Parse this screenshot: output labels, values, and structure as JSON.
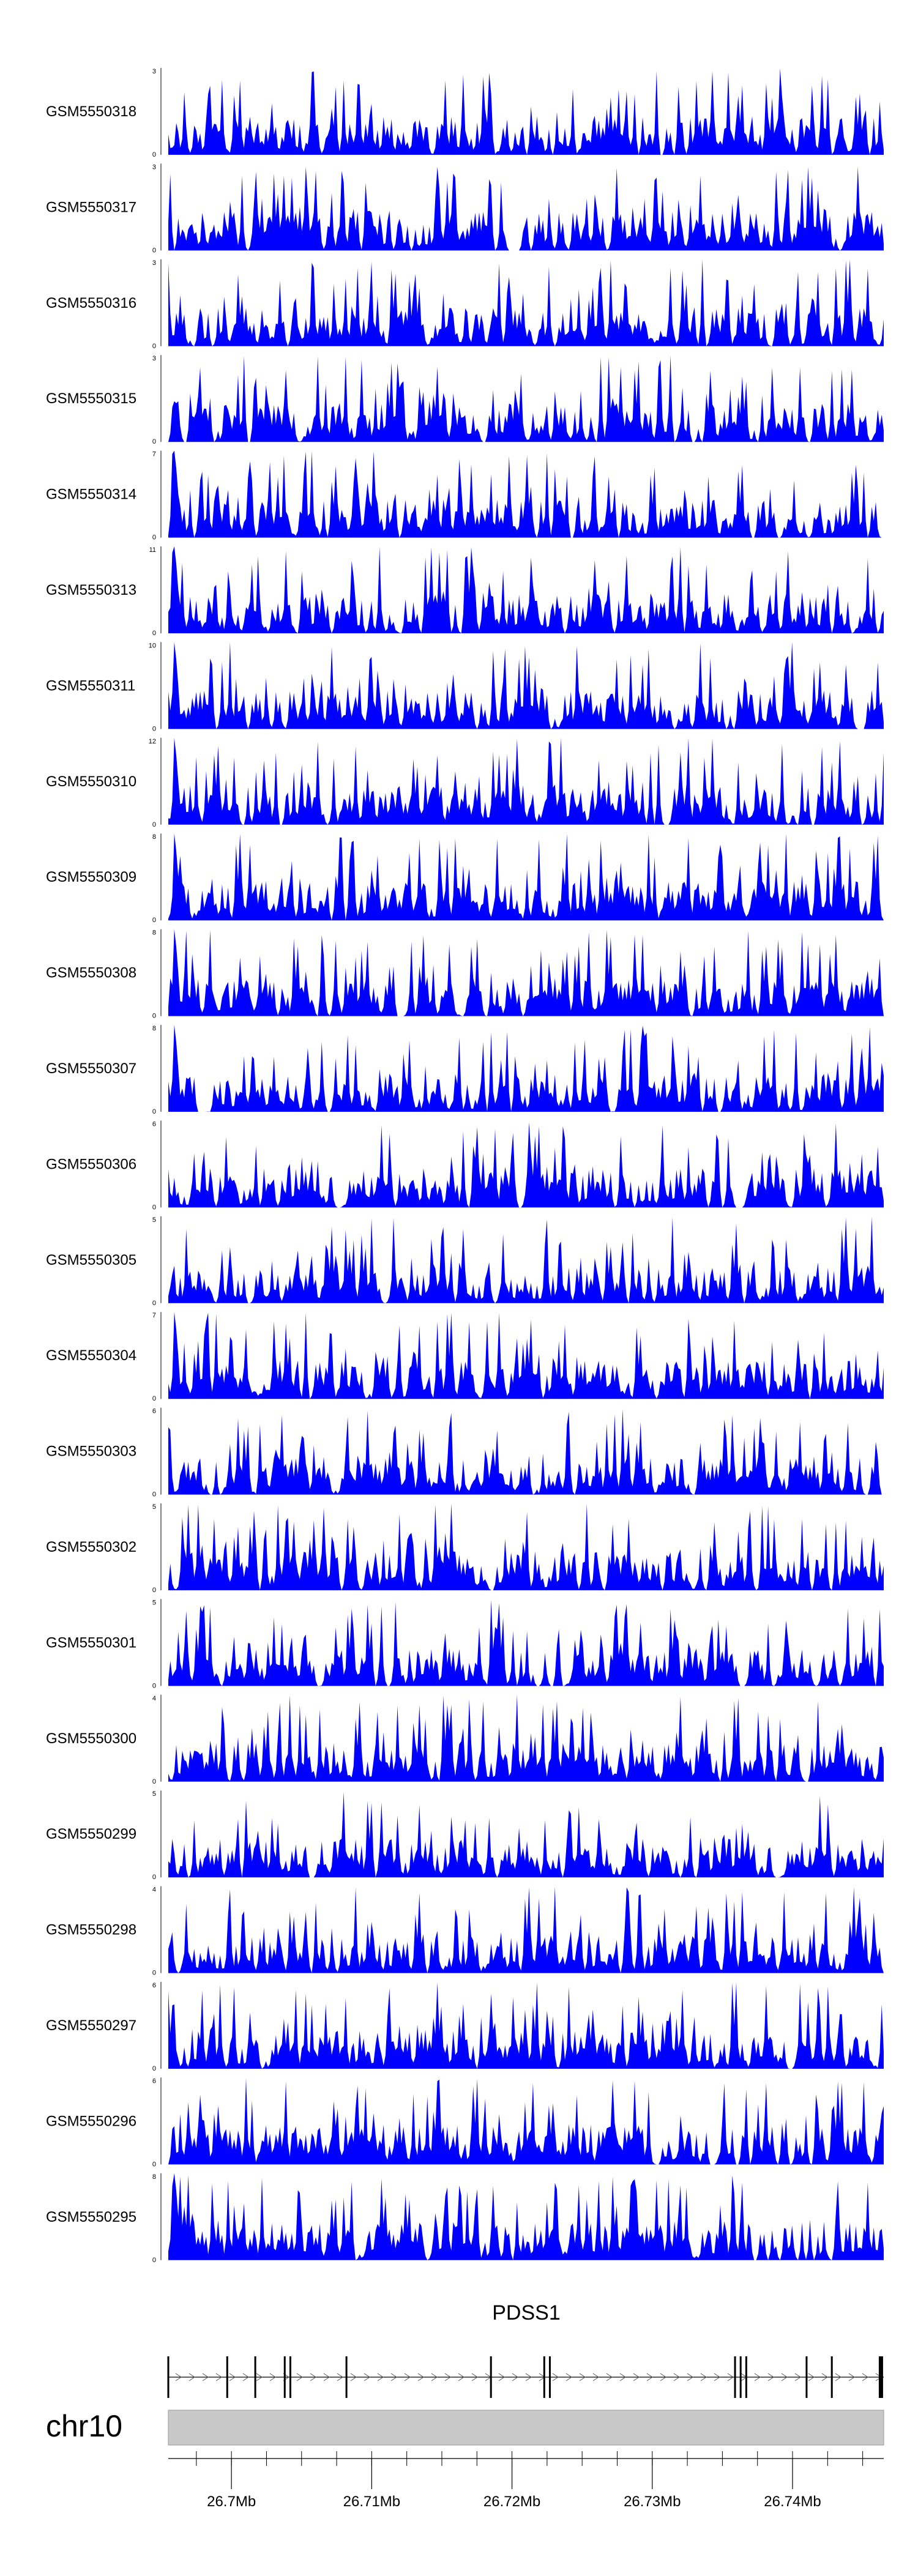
{
  "chart_data": {
    "type": "area",
    "description_type": "genome-track-coverage",
    "fill_color": "#0000FF",
    "tracks": [
      {
        "name": "GSM5550318",
        "ymin": 0,
        "ymax": 3,
        "seed": 318
      },
      {
        "name": "GSM5550317",
        "ymin": 0,
        "ymax": 3,
        "seed": 317
      },
      {
        "name": "GSM5550316",
        "ymin": 0,
        "ymax": 3,
        "seed": 316
      },
      {
        "name": "GSM5550315",
        "ymin": 0,
        "ymax": 3,
        "seed": 315
      },
      {
        "name": "GSM5550314",
        "ymin": 0,
        "ymax": 7,
        "seed": 314
      },
      {
        "name": "GSM5550313",
        "ymin": 0,
        "ymax": 11,
        "seed": 313
      },
      {
        "name": "GSM5550311",
        "ymin": 0,
        "ymax": 10,
        "seed": 311
      },
      {
        "name": "GSM5550310",
        "ymin": 0,
        "ymax": 12,
        "seed": 310
      },
      {
        "name": "GSM5550309",
        "ymin": 0,
        "ymax": 8,
        "seed": 309
      },
      {
        "name": "GSM5550308",
        "ymin": 0,
        "ymax": 8,
        "seed": 308
      },
      {
        "name": "GSM5550307",
        "ymin": 0,
        "ymax": 8,
        "seed": 307
      },
      {
        "name": "GSM5550306",
        "ymin": 0,
        "ymax": 6,
        "seed": 306
      },
      {
        "name": "GSM5550305",
        "ymin": 0,
        "ymax": 5,
        "seed": 305
      },
      {
        "name": "GSM5550304",
        "ymin": 0,
        "ymax": 7,
        "seed": 304
      },
      {
        "name": "GSM5550303",
        "ymin": 0,
        "ymax": 6,
        "seed": 303
      },
      {
        "name": "GSM5550302",
        "ymin": 0,
        "ymax": 5,
        "seed": 302
      },
      {
        "name": "GSM5550301",
        "ymin": 0,
        "ymax": 5,
        "seed": 301
      },
      {
        "name": "GSM5550300",
        "ymin": 0,
        "ymax": 4,
        "seed": 300
      },
      {
        "name": "GSM5550299",
        "ymin": 0,
        "ymax": 5,
        "seed": 299
      },
      {
        "name": "GSM5550298",
        "ymin": 0,
        "ymax": 4,
        "seed": 298
      },
      {
        "name": "GSM5550297",
        "ymin": 0,
        "ymax": 6,
        "seed": 297
      },
      {
        "name": "GSM5550296",
        "ymin": 0,
        "ymax": 6,
        "seed": 296
      },
      {
        "name": "GSM5550295",
        "ymin": 0,
        "ymax": 8,
        "seed": 295
      }
    ],
    "gene": {
      "name": "PDSS1",
      "strand": "+",
      "start_mb": 26.6955,
      "end_mb": 26.7465,
      "exons_mb": [
        26.6955,
        26.6997,
        26.7017,
        26.7038,
        26.7042,
        26.7082,
        26.7185,
        26.7223,
        26.7227,
        26.7359,
        26.7363,
        26.7367,
        26.741,
        26.7428,
        26.7463
      ]
    },
    "ideogram": {
      "chromosome": "chr10",
      "range_mb": [
        26.6955,
        26.7465
      ]
    },
    "x_axis": {
      "labeled_ticks_mb": [
        26.7,
        26.71,
        26.72,
        26.73,
        26.74
      ],
      "tick_labels": [
        "26.7Mb",
        "26.71Mb",
        "26.72Mb",
        "26.73Mb",
        "26.74Mb"
      ],
      "minor_tick_step_mb": 0.0025
    }
  }
}
